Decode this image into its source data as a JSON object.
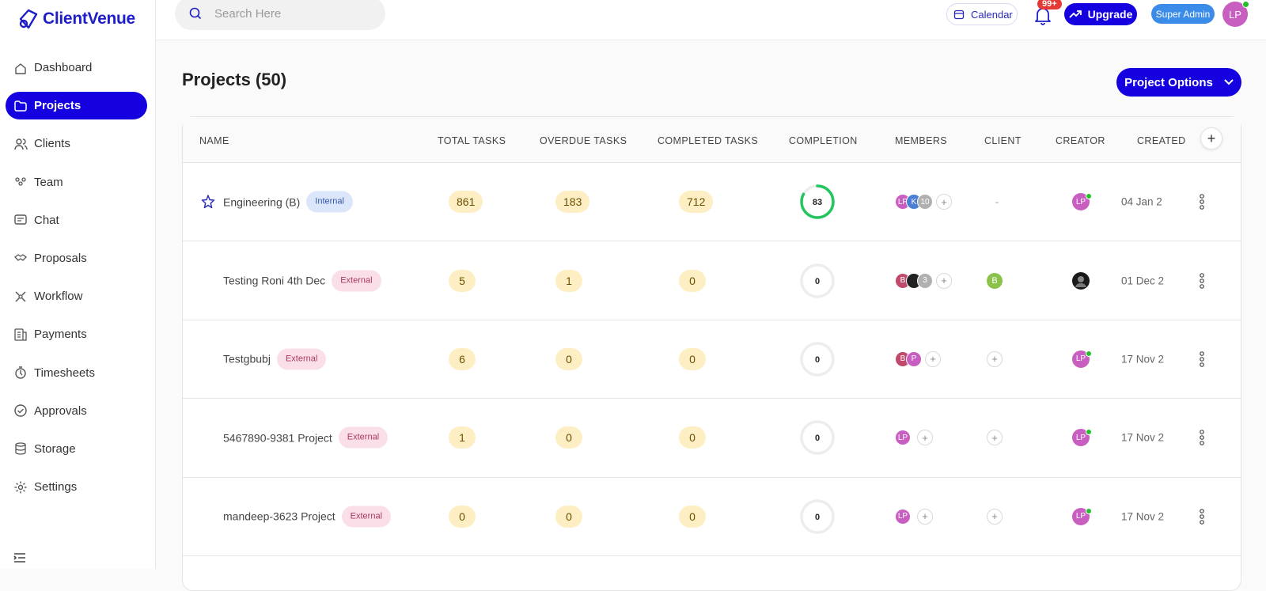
{
  "app": {
    "name": "ClientVenue"
  },
  "sidebar": {
    "items": [
      {
        "label": "Dashboard",
        "icon": "home-icon",
        "active": false
      },
      {
        "label": "Projects",
        "icon": "folder-icon",
        "active": true
      },
      {
        "label": "Clients",
        "icon": "users-icon",
        "active": false
      },
      {
        "label": "Team",
        "icon": "team-icon",
        "active": false
      },
      {
        "label": "Chat",
        "icon": "chat-icon",
        "active": false
      },
      {
        "label": "Proposals",
        "icon": "handshake-icon",
        "active": false
      },
      {
        "label": "Workflow",
        "icon": "workflow-icon",
        "active": false
      },
      {
        "label": "Payments",
        "icon": "payments-icon",
        "active": false
      },
      {
        "label": "Timesheets",
        "icon": "timer-icon",
        "active": false
      },
      {
        "label": "Approvals",
        "icon": "check-circle-icon",
        "active": false
      },
      {
        "label": "Storage",
        "icon": "database-icon",
        "active": false
      },
      {
        "label": "Settings",
        "icon": "gear-icon",
        "active": false
      }
    ]
  },
  "topbar": {
    "search_placeholder": "Search Here",
    "calendar_label": "Calendar",
    "notifications_badge": "99+",
    "upgrade_label": "Upgrade",
    "role_label": "Super Admin",
    "user_initials": "LP"
  },
  "page": {
    "title": "Projects (50)",
    "options_label": "Project Options"
  },
  "table": {
    "columns": [
      "NAME",
      "TOTAL TASKS",
      "OVERDUE TASKS",
      "COMPLETED TASKS",
      "COMPLETION",
      "MEMBERS",
      "CLIENT",
      "CREATOR",
      "CREATED"
    ],
    "rows": [
      {
        "name": "Engineering (B)",
        "tag": "Internal",
        "starred": true,
        "total": "861",
        "overdue": "183",
        "completed": "712",
        "completion": "83",
        "completion_pct": 83,
        "members": [
          "LP",
          "K",
          "10"
        ],
        "client": "-",
        "created": "04 Jan 2"
      },
      {
        "name": "Testing Roni 4th Dec",
        "tag": "External",
        "starred": false,
        "total": "5",
        "overdue": "1",
        "completed": "0",
        "completion": "0",
        "completion_pct": 0,
        "members": [
          "B",
          "",
          "3"
        ],
        "client": "B",
        "created": "01 Dec 2"
      },
      {
        "name": "Testgbubj",
        "tag": "External",
        "starred": false,
        "total": "6",
        "overdue": "0",
        "completed": "0",
        "completion": "0",
        "completion_pct": 0,
        "members": [
          "B",
          "P"
        ],
        "client": "+",
        "created": "17 Nov 2"
      },
      {
        "name": "5467890-9381 Project",
        "tag": "External",
        "starred": false,
        "total": "1",
        "overdue": "0",
        "completed": "0",
        "completion": "0",
        "completion_pct": 0,
        "members": [
          "LP"
        ],
        "client": "+",
        "created": "17 Nov 2"
      },
      {
        "name": "mandeep-3623 Project",
        "tag": "External",
        "starred": false,
        "total": "0",
        "overdue": "0",
        "completed": "0",
        "completion": "0",
        "completion_pct": 0,
        "members": [
          "LP"
        ],
        "client": "+",
        "created": "17 Nov 2"
      }
    ]
  },
  "colors": {
    "accent": "#1500e0",
    "task_badge": "#fdefc3",
    "ring_green": "#22c55e"
  }
}
